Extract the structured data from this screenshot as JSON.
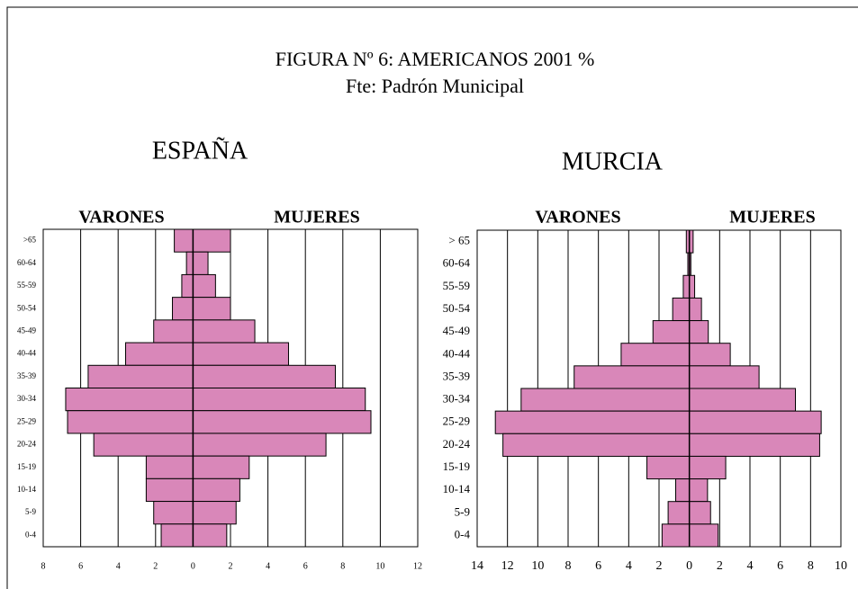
{
  "title": "FIGURA Nº 6: AMERICANOS 2001 %",
  "subtitle": "Fte: Padrón Municipal",
  "chart_data": [
    {
      "type": "pyramid",
      "title": "ESPAÑA",
      "categories": [
        ">65",
        "60-64",
        "55-59",
        "50-54",
        "45-49",
        "40-44",
        "35-39",
        "30-34",
        "25-29",
        "20-24",
        "15-19",
        "10-14",
        "5-9",
        "0-4"
      ],
      "series": [
        {
          "name": "VARONES",
          "color": "#d987b9",
          "values": [
            -1.0,
            -0.35,
            -0.6,
            -1.1,
            -2.1,
            -3.6,
            -5.6,
            -6.8,
            -6.7,
            -5.3,
            -2.5,
            -2.5,
            -2.1,
            -1.7
          ]
        },
        {
          "name": "MUJERES",
          "color": "#d987b9",
          "values": [
            2.0,
            0.8,
            1.2,
            2.0,
            3.3,
            5.1,
            7.6,
            9.2,
            9.5,
            7.1,
            3.0,
            2.5,
            2.3,
            1.8
          ]
        }
      ],
      "xlim": [
        -8,
        12
      ],
      "xticks": [
        {
          "value": -8,
          "label": "8"
        },
        {
          "value": -6,
          "label": "6"
        },
        {
          "value": -4,
          "label": "4"
        },
        {
          "value": -2,
          "label": "2"
        },
        0,
        2,
        4,
        6,
        8,
        10,
        12
      ],
      "grid": true
    },
    {
      "type": "pyramid",
      "title": "MURCIA",
      "categories": [
        "> 65",
        "60-64",
        "55-59",
        "50-54",
        "45-49",
        "40-44",
        "35-39",
        "30-34",
        "25-29",
        "20-24",
        "15-19",
        "10-14",
        "5-9",
        "0-4"
      ],
      "series": [
        {
          "name": "VARONES",
          "color": "#d987b9",
          "values": [
            -0.2,
            -0.1,
            -0.4,
            -1.1,
            -2.4,
            -4.5,
            -7.6,
            -11.1,
            -12.8,
            -12.3,
            -2.8,
            -0.9,
            -1.4,
            -1.8
          ]
        },
        {
          "name": "MUJERES",
          "color": "#d987b9",
          "values": [
            0.25,
            0.1,
            0.35,
            0.8,
            1.25,
            2.7,
            4.6,
            7.0,
            8.7,
            8.6,
            2.4,
            1.2,
            1.4,
            1.9
          ]
        }
      ],
      "xlim": [
        -14,
        10
      ],
      "xticks": [
        {
          "value": -14,
          "label": "14"
        },
        {
          "value": -12,
          "label": "12"
        },
        {
          "value": -10,
          "label": "10"
        },
        {
          "value": -8,
          "label": "8"
        },
        {
          "value": -6,
          "label": "6"
        },
        {
          "value": -4,
          "label": "4"
        },
        {
          "value": -2,
          "label": "2"
        },
        0,
        2,
        4,
        6,
        8,
        10
      ],
      "grid": true
    }
  ]
}
